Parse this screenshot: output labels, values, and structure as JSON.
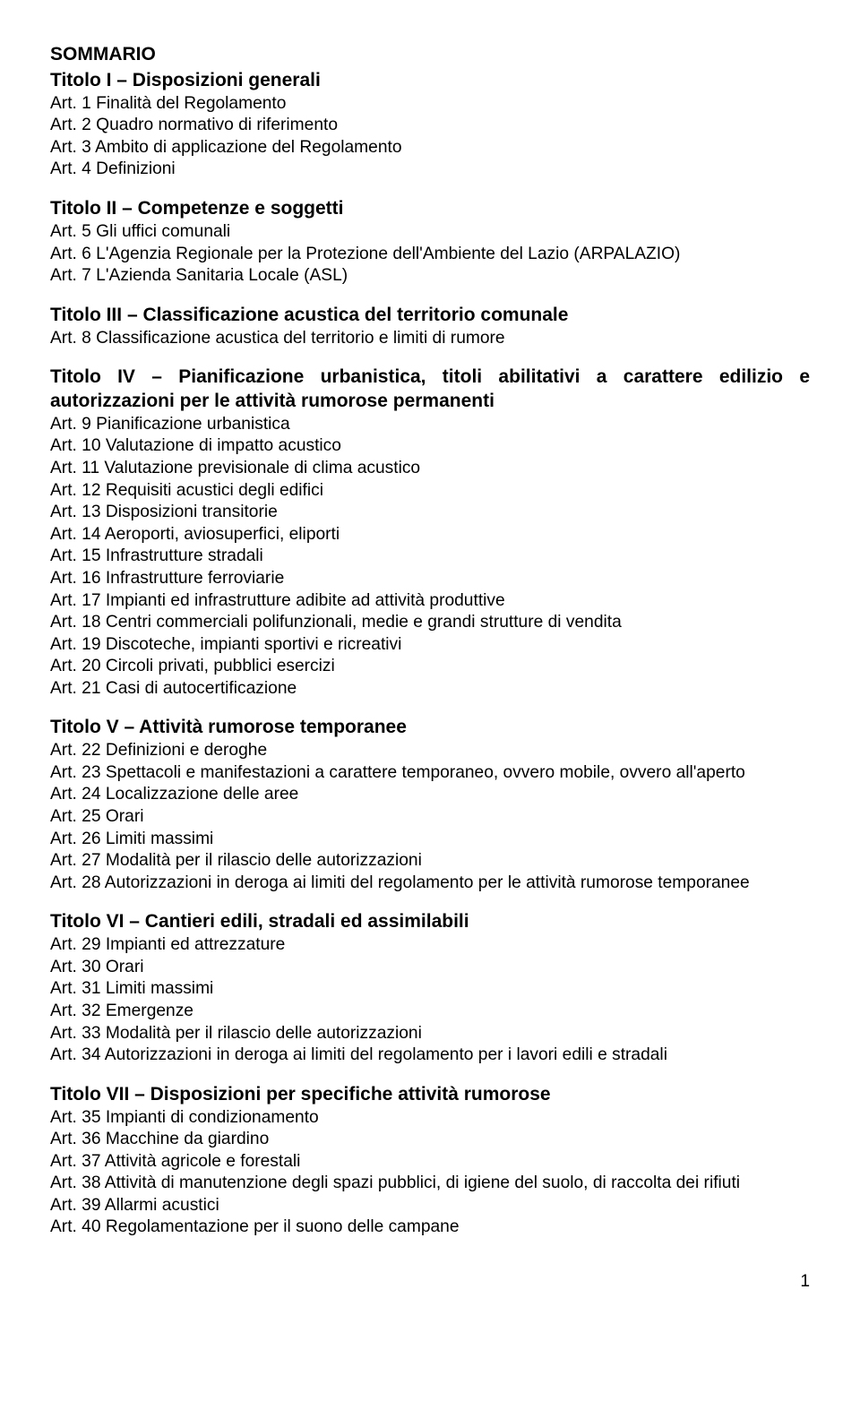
{
  "sommario": "SOMMARIO",
  "titolo1": {
    "title": "Titolo I – Disposizioni generali",
    "items": [
      "Art. 1 Finalità del Regolamento",
      "Art. 2 Quadro normativo di riferimento",
      "Art. 3 Ambito di applicazione del Regolamento",
      "Art. 4 Definizioni"
    ]
  },
  "titolo2": {
    "title": "Titolo II – Competenze e soggetti",
    "items": [
      "Art. 5 Gli uffici comunali",
      "Art. 6 L'Agenzia Regionale per la Protezione dell'Ambiente del Lazio (ARPALAZIO)",
      "Art. 7 L'Azienda Sanitaria Locale (ASL)"
    ]
  },
  "titolo3": {
    "title": "Titolo III – Classificazione acustica del territorio comunale",
    "items": [
      "Art. 8 Classificazione acustica del territorio e limiti di rumore"
    ]
  },
  "titolo4": {
    "title": "Titolo IV – Pianificazione urbanistica, titoli abilitativi a carattere edilizio e autorizzazioni per le attività rumorose permanenti",
    "items": [
      "Art. 9 Pianificazione urbanistica",
      "Art. 10 Valutazione di impatto acustico",
      "Art. 11 Valutazione previsionale di clima acustico",
      "Art. 12 Requisiti acustici degli edifici",
      "Art. 13 Disposizioni transitorie",
      "Art. 14 Aeroporti, aviosuperfici, eliporti",
      "Art. 15 Infrastrutture stradali",
      "Art. 16 Infrastrutture ferroviarie",
      "Art. 17 Impianti ed infrastrutture adibite ad attività produttive",
      "Art. 18 Centri commerciali polifunzionali, medie e grandi strutture di vendita",
      "Art. 19 Discoteche, impianti sportivi e ricreativi",
      "Art. 20 Circoli privati, pubblici esercizi",
      "Art. 21 Casi di autocertificazione"
    ]
  },
  "titolo5": {
    "title": "Titolo V – Attività rumorose temporanee",
    "items": [
      "Art. 22 Definizioni e deroghe",
      "Art. 23 Spettacoli e manifestazioni a carattere temporaneo, ovvero mobile, ovvero all'aperto",
      "Art. 24 Localizzazione delle aree",
      "Art. 25 Orari",
      "Art. 26 Limiti massimi",
      "Art. 27 Modalità per il rilascio delle autorizzazioni",
      "Art. 28 Autorizzazioni in deroga ai limiti del regolamento per le attività rumorose temporanee"
    ]
  },
  "titolo6": {
    "title": "Titolo VI – Cantieri edili, stradali ed assimilabili",
    "items": [
      "Art. 29 Impianti ed attrezzature",
      "Art. 30 Orari",
      "Art. 31 Limiti massimi",
      "Art. 32 Emergenze",
      "Art. 33 Modalità per il rilascio delle autorizzazioni",
      "Art. 34 Autorizzazioni in deroga ai limiti del regolamento per i lavori edili e stradali"
    ]
  },
  "titolo7": {
    "title": "Titolo VII – Disposizioni per specifiche attività rumorose",
    "items": [
      "Art. 35 Impianti di condizionamento",
      "Art. 36 Macchine da giardino",
      "Art. 37 Attività agricole e forestali",
      "Art. 38 Attività di manutenzione degli spazi pubblici, di igiene del suolo, di raccolta dei rifiuti",
      "Art. 39 Allarmi acustici",
      "Art. 40 Regolamentazione per il suono delle campane"
    ]
  },
  "pageNumber": "1"
}
